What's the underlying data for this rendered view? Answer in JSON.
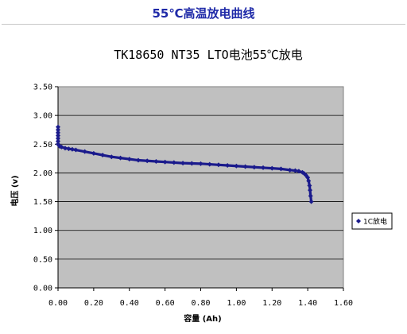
{
  "page_title": "55℃高温放电曲线",
  "chart_data": {
    "type": "line",
    "title": "TK18650 NT35 LTO电池55℃放电",
    "xlabel": "容量 (Ah)",
    "ylabel": "电压 (v)",
    "xlim": [
      0,
      1.6
    ],
    "ylim": [
      0,
      3.5
    ],
    "x_ticks": [
      "0.00",
      "0.20",
      "0.40",
      "0.60",
      "0.80",
      "1.00",
      "1.20",
      "1.40",
      "1.60"
    ],
    "y_ticks": [
      "0.00",
      "0.50",
      "1.00",
      "1.50",
      "2.00",
      "2.50",
      "3.00",
      "3.50"
    ],
    "grid": true,
    "background_color": "#c0c0c0",
    "series_color": "#1a1a8c",
    "legend_position": "right",
    "series": [
      {
        "name": "1C放电",
        "x": [
          0.0,
          0.0,
          0.0,
          0.0,
          0.0,
          0.0,
          0.0,
          0.005,
          0.01,
          0.02,
          0.04,
          0.06,
          0.08,
          0.1,
          0.15,
          0.2,
          0.25,
          0.3,
          0.35,
          0.4,
          0.45,
          0.5,
          0.55,
          0.6,
          0.65,
          0.7,
          0.75,
          0.8,
          0.85,
          0.9,
          0.95,
          1.0,
          1.05,
          1.1,
          1.15,
          1.2,
          1.25,
          1.3,
          1.33,
          1.35,
          1.37,
          1.38,
          1.39,
          1.4,
          1.405,
          1.41,
          1.413,
          1.416,
          1.42
        ],
        "y": [
          2.8,
          2.75,
          2.7,
          2.65,
          2.6,
          2.55,
          2.5,
          2.48,
          2.46,
          2.45,
          2.43,
          2.42,
          2.41,
          2.4,
          2.37,
          2.34,
          2.31,
          2.28,
          2.26,
          2.24,
          2.22,
          2.21,
          2.2,
          2.19,
          2.18,
          2.17,
          2.165,
          2.16,
          2.15,
          2.14,
          2.13,
          2.12,
          2.11,
          2.1,
          2.09,
          2.08,
          2.07,
          2.05,
          2.04,
          2.03,
          2.01,
          1.99,
          1.96,
          1.92,
          1.86,
          1.78,
          1.7,
          1.6,
          1.5
        ]
      }
    ]
  }
}
